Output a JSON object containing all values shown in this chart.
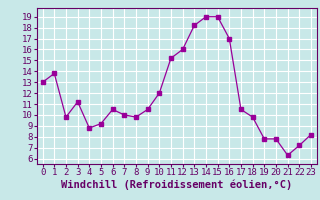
{
  "x": [
    0,
    1,
    2,
    3,
    4,
    5,
    6,
    7,
    8,
    9,
    10,
    11,
    12,
    13,
    14,
    15,
    16,
    17,
    18,
    19,
    20,
    21,
    22,
    23
  ],
  "y": [
    13.0,
    13.8,
    9.8,
    11.2,
    8.8,
    9.2,
    10.5,
    10.0,
    9.8,
    10.5,
    12.0,
    15.2,
    16.0,
    18.2,
    19.0,
    19.0,
    17.0,
    10.5,
    9.8,
    7.8,
    7.8,
    6.3,
    7.2,
    8.2
  ],
  "xlim": [
    -0.5,
    23.5
  ],
  "ylim": [
    5.5,
    19.8
  ],
  "yticks": [
    6,
    7,
    8,
    9,
    10,
    11,
    12,
    13,
    14,
    15,
    16,
    17,
    18,
    19
  ],
  "xtick_labels": [
    "0",
    "1",
    "2",
    "3",
    "4",
    "5",
    "6",
    "7",
    "8",
    "9",
    "10",
    "11",
    "12",
    "13",
    "14",
    "15",
    "16",
    "17",
    "18",
    "19",
    "20",
    "21",
    "22",
    "23"
  ],
  "xlabel": "Windchill (Refroidissement éolien,°C)",
  "line_color": "#990099",
  "marker": "s",
  "marker_size": 2.5,
  "bg_color": "#c8e8e8",
  "grid_color": "#ffffff",
  "tick_fontsize": 6.5,
  "xlabel_fontsize": 7.5
}
